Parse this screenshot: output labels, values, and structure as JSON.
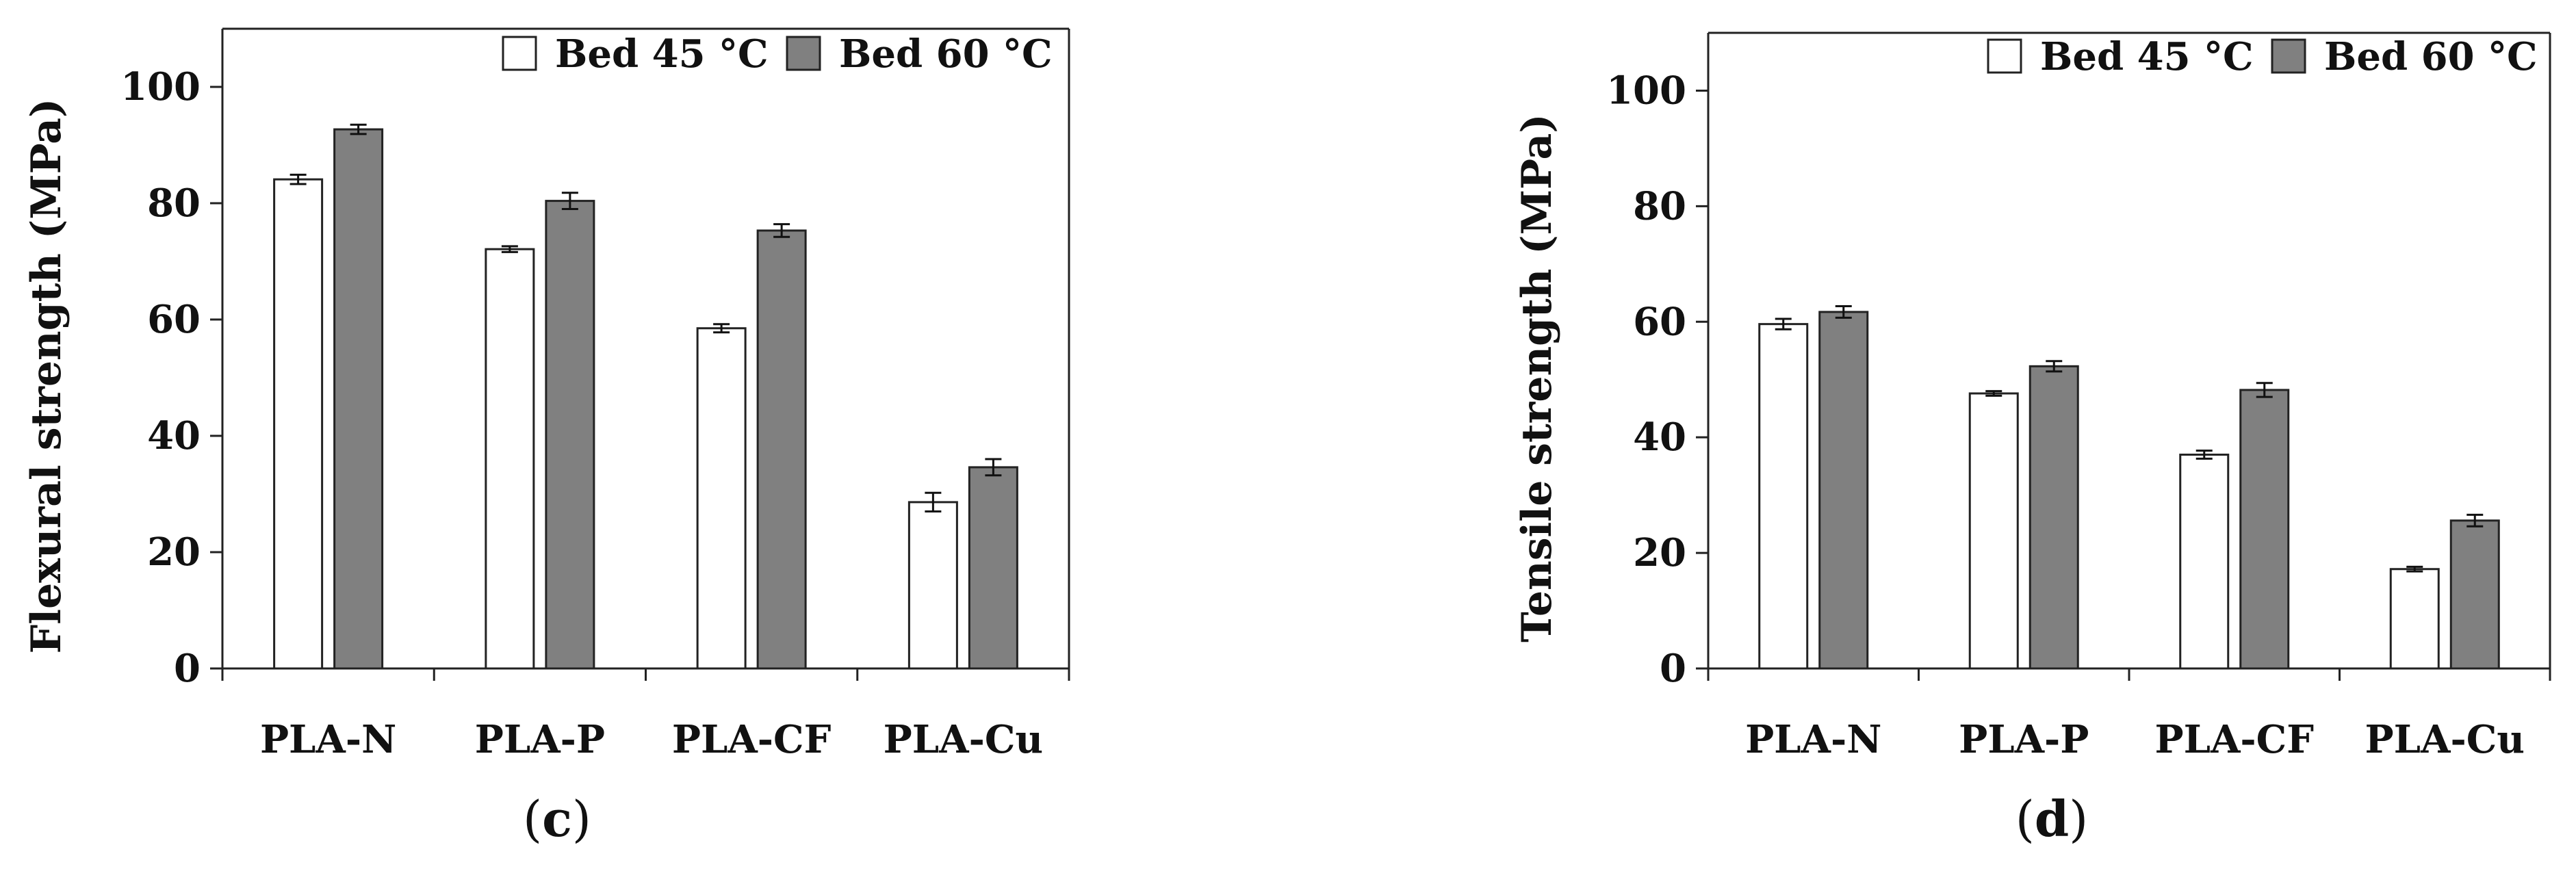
{
  "chart_data": [
    {
      "type": "bar",
      "panel_label": {
        "open": "(",
        "letter": "c",
        "close": ")"
      },
      "title": "",
      "ylabel": "Flexural strength (MPa)",
      "xlabel": "",
      "ylim": [
        0,
        110
      ],
      "yticks": [
        0,
        20,
        40,
        60,
        80,
        100
      ],
      "categories": [
        "PLA-N",
        "PLA-P",
        "PLA-CF",
        "PLA-Cu"
      ],
      "series": [
        {
          "name": "Bed 45 °C",
          "color": "#ffffff",
          "values": [
            84.1,
            72.1,
            58.5,
            28.6
          ],
          "errors": [
            0.8,
            0.5,
            0.7,
            1.6
          ]
        },
        {
          "name": "Bed 60 °C",
          "color": "#808080",
          "values": [
            92.7,
            80.4,
            75.3,
            34.6
          ],
          "errors": [
            0.8,
            1.4,
            1.1,
            1.4
          ]
        }
      ],
      "legend_position": "top-right",
      "grid": false
    },
    {
      "type": "bar",
      "panel_label": {
        "open": "(",
        "letter": "d",
        "close": ")"
      },
      "title": "",
      "ylabel": "Tensile strength (MPa)",
      "xlabel": "",
      "ylim": [
        0,
        110
      ],
      "yticks": [
        0,
        20,
        40,
        60,
        80,
        100
      ],
      "categories": [
        "PLA-N",
        "PLA-P",
        "PLA-CF",
        "PLA-Cu"
      ],
      "series": [
        {
          "name": "Bed 45 °C",
          "color": "#ffffff",
          "values": [
            59.6,
            47.6,
            37.0,
            17.2
          ],
          "errors": [
            0.9,
            0.4,
            0.7,
            0.4
          ]
        },
        {
          "name": "Bed 60 °C",
          "color": "#808080",
          "values": [
            61.7,
            52.3,
            48.2,
            25.6
          ],
          "errors": [
            1.0,
            0.9,
            1.2,
            1.0
          ]
        }
      ],
      "legend_position": "top-right",
      "grid": false
    }
  ]
}
